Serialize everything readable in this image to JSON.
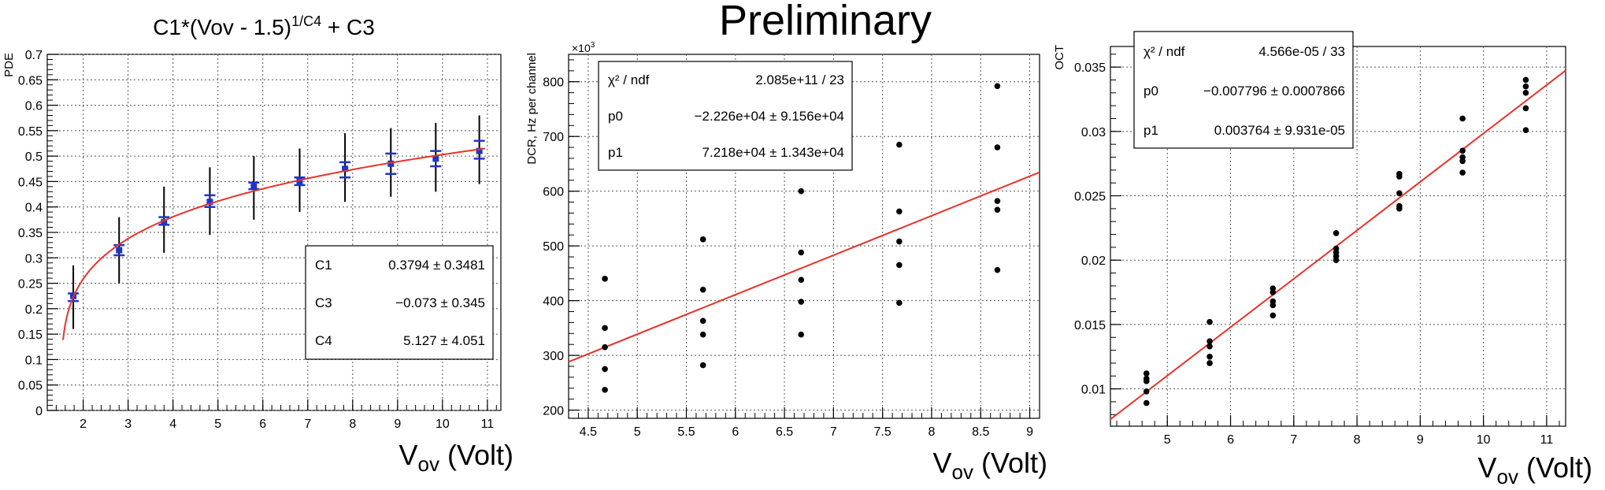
{
  "header": {
    "title": "Preliminary"
  },
  "chart_data": [
    {
      "type": "scatter",
      "title": "C1*(Vov - 1.5)^{1/C4} + C3",
      "title_parts": {
        "main": "C1*(Vov - 1.5)",
        "sup": "1/C4",
        "tail": " + C3"
      },
      "ylabel": "PDE",
      "xlabel": "V_ov (Volt)",
      "xlabel_parts": {
        "main": "V",
        "sub": "ov",
        "tail": " (Volt)"
      },
      "xlim": [
        1.2,
        11.3
      ],
      "ylim": [
        0,
        0.7
      ],
      "xticks": [
        2,
        3,
        4,
        5,
        6,
        7,
        8,
        9,
        10,
        11
      ],
      "yticks": [
        0,
        0.05,
        0.1,
        0.15,
        0.2,
        0.25,
        0.3,
        0.35,
        0.4,
        0.45,
        0.5,
        0.55,
        0.6,
        0.65,
        0.7
      ],
      "ytick_labels": [
        "0",
        "0.05",
        "0.1",
        "0.15",
        "0.2",
        "0.25",
        "0.3",
        "0.35",
        "0.4",
        "0.45",
        "0.5",
        "0.55",
        "0.6",
        "0.65",
        "0.7"
      ],
      "grid": true,
      "points": [
        {
          "x": 1.78,
          "y": 0.225,
          "ylow": 0.16,
          "yhigh": 0.285,
          "marks": [
            0.23,
            0.215
          ]
        },
        {
          "x": 2.8,
          "y": 0.315,
          "ylow": 0.25,
          "yhigh": 0.38,
          "marks": [
            0.325,
            0.305
          ]
        },
        {
          "x": 3.8,
          "y": 0.37,
          "ylow": 0.31,
          "yhigh": 0.44,
          "marks": [
            0.38,
            0.365
          ]
        },
        {
          "x": 4.82,
          "y": 0.41,
          "ylow": 0.345,
          "yhigh": 0.478,
          "marks": [
            0.423,
            0.4
          ]
        },
        {
          "x": 5.8,
          "y": 0.44,
          "ylow": 0.375,
          "yhigh": 0.5,
          "marks": [
            0.448,
            0.435
          ]
        },
        {
          "x": 6.82,
          "y": 0.45,
          "ylow": 0.39,
          "yhigh": 0.515,
          "marks": [
            0.458,
            0.443
          ]
        },
        {
          "x": 7.83,
          "y": 0.475,
          "ylow": 0.41,
          "yhigh": 0.545,
          "marks": [
            0.488,
            0.458
          ]
        },
        {
          "x": 8.85,
          "y": 0.485,
          "ylow": 0.42,
          "yhigh": 0.555,
          "marks": [
            0.505,
            0.465
          ]
        },
        {
          "x": 9.85,
          "y": 0.495,
          "ylow": 0.43,
          "yhigh": 0.565,
          "marks": [
            0.51,
            0.48
          ]
        },
        {
          "x": 10.82,
          "y": 0.51,
          "ylow": 0.445,
          "yhigh": 0.58,
          "marks": [
            0.53,
            0.495
          ]
        }
      ],
      "fit": {
        "function": "C1*(x-1.5)^(1/C4)+C3",
        "C1": 0.3794,
        "C3": -0.073,
        "C4": 5.127,
        "xrange": [
          1.55,
          10.95
        ]
      },
      "stats": [
        {
          "name": "C1",
          "value": "0.3794 ± 0.3481"
        },
        {
          "name": "C3",
          "value": "−0.073 ± 0.345"
        },
        {
          "name": "C4",
          "value": "5.127 ± 4.051"
        }
      ],
      "colors": {
        "fit": "#e8332a",
        "points": "#1f35c8"
      }
    },
    {
      "type": "scatter",
      "title": "",
      "ylabel": "DCR, Hz per channel",
      "exponent_label": "×10³",
      "exponent_parts": {
        "main": "×10",
        "sup": "3"
      },
      "xlabel": "V_ov (Volt)",
      "xlabel_parts": {
        "main": "V",
        "sub": "ov",
        "tail": " (Volt)"
      },
      "xlim": [
        4.3,
        9.1
      ],
      "ylim": [
        185,
        850
      ],
      "xticks": [
        4.5,
        5,
        5.5,
        6,
        6.5,
        7,
        7.5,
        8,
        8.5,
        9
      ],
      "xtick_labels": [
        "4.5",
        "5",
        "5.5",
        "6",
        "6.5",
        "7",
        "7.5",
        "8",
        "8.5",
        "9"
      ],
      "yticks": [
        200,
        300,
        400,
        500,
        600,
        700,
        800
      ],
      "ytick_labels": [
        "200",
        "300",
        "400",
        "500",
        "600",
        "700",
        "800"
      ],
      "grid": true,
      "points": [
        {
          "x": 4.67,
          "y": 440
        },
        {
          "x": 4.67,
          "y": 350
        },
        {
          "x": 4.67,
          "y": 315
        },
        {
          "x": 4.67,
          "y": 275
        },
        {
          "x": 4.67,
          "y": 237
        },
        {
          "x": 5.67,
          "y": 512
        },
        {
          "x": 5.67,
          "y": 420
        },
        {
          "x": 5.67,
          "y": 363
        },
        {
          "x": 5.67,
          "y": 338
        },
        {
          "x": 5.67,
          "y": 282
        },
        {
          "x": 6.67,
          "y": 600
        },
        {
          "x": 6.67,
          "y": 488
        },
        {
          "x": 6.67,
          "y": 438
        },
        {
          "x": 6.67,
          "y": 398
        },
        {
          "x": 6.67,
          "y": 338
        },
        {
          "x": 7.67,
          "y": 685
        },
        {
          "x": 7.67,
          "y": 563
        },
        {
          "x": 7.67,
          "y": 508
        },
        {
          "x": 7.67,
          "y": 465
        },
        {
          "x": 7.67,
          "y": 396
        },
        {
          "x": 8.67,
          "y": 792
        },
        {
          "x": 8.67,
          "y": 680
        },
        {
          "x": 8.67,
          "y": 582
        },
        {
          "x": 8.67,
          "y": 566
        },
        {
          "x": 8.67,
          "y": 456
        }
      ],
      "fit": {
        "function": "p0+p1*x",
        "p0": -22.26,
        "p1": 72.18,
        "xrange": [
          4.3,
          9.1
        ]
      },
      "stats": [
        {
          "name": "χ² / ndf",
          "value": "2.085e+11 / 23"
        },
        {
          "name": "p0",
          "value": "−2.226e+04 ± 9.156e+04"
        },
        {
          "name": "p1",
          "value": "7.218e+04 ± 1.343e+04"
        }
      ],
      "colors": {
        "fit": "#e8332a",
        "points": "#000000"
      }
    },
    {
      "type": "scatter",
      "title": "",
      "ylabel": "OCT",
      "xlabel": "V_ov (Volt)",
      "xlabel_parts": {
        "main": "V",
        "sub": "ov",
        "tail": " (Volt)"
      },
      "xlim": [
        4.1,
        11.3
      ],
      "ylim": [
        0.0071,
        0.0366
      ],
      "xticks": [
        5,
        6,
        7,
        8,
        9,
        10,
        11
      ],
      "xtick_labels": [
        "5",
        "6",
        "7",
        "8",
        "9",
        "10",
        "11"
      ],
      "yticks": [
        0.01,
        0.015,
        0.02,
        0.025,
        0.03,
        0.035
      ],
      "ytick_labels": [
        "0.01",
        "0.015",
        "0.02",
        "0.025",
        "0.03",
        "0.035"
      ],
      "grid": true,
      "points": [
        {
          "x": 4.67,
          "y": 0.0112
        },
        {
          "x": 4.67,
          "y": 0.0108
        },
        {
          "x": 4.67,
          "y": 0.0106
        },
        {
          "x": 4.67,
          "y": 0.0098
        },
        {
          "x": 4.67,
          "y": 0.0089
        },
        {
          "x": 5.67,
          "y": 0.0152
        },
        {
          "x": 5.67,
          "y": 0.0137
        },
        {
          "x": 5.67,
          "y": 0.0133
        },
        {
          "x": 5.67,
          "y": 0.0125
        },
        {
          "x": 5.67,
          "y": 0.012
        },
        {
          "x": 6.67,
          "y": 0.0178
        },
        {
          "x": 6.67,
          "y": 0.0175
        },
        {
          "x": 6.67,
          "y": 0.0168
        },
        {
          "x": 6.67,
          "y": 0.0165
        },
        {
          "x": 6.67,
          "y": 0.0157
        },
        {
          "x": 7.67,
          "y": 0.0221
        },
        {
          "x": 7.67,
          "y": 0.0209
        },
        {
          "x": 7.67,
          "y": 0.0206
        },
        {
          "x": 7.67,
          "y": 0.0203
        },
        {
          "x": 7.67,
          "y": 0.02
        },
        {
          "x": 8.67,
          "y": 0.0267
        },
        {
          "x": 8.67,
          "y": 0.0265
        },
        {
          "x": 8.67,
          "y": 0.0252
        },
        {
          "x": 8.67,
          "y": 0.0242
        },
        {
          "x": 8.67,
          "y": 0.024
        },
        {
          "x": 9.67,
          "y": 0.031
        },
        {
          "x": 9.67,
          "y": 0.0285
        },
        {
          "x": 9.67,
          "y": 0.028
        },
        {
          "x": 9.67,
          "y": 0.0277
        },
        {
          "x": 9.67,
          "y": 0.0268
        },
        {
          "x": 10.67,
          "y": 0.034
        },
        {
          "x": 10.67,
          "y": 0.0335
        },
        {
          "x": 10.67,
          "y": 0.033
        },
        {
          "x": 10.67,
          "y": 0.0318
        },
        {
          "x": 10.67,
          "y": 0.0301
        }
      ],
      "fit": {
        "function": "p0+p1*x",
        "p0": -0.007796,
        "p1": 0.003764,
        "xrange": [
          4.1,
          11.3
        ]
      },
      "stats": [
        {
          "name": "χ² / ndf",
          "value": "4.566e-05 / 33"
        },
        {
          "name": "p0",
          "value": "−0.007796 ± 0.0007866"
        },
        {
          "name": "p1",
          "value": "0.003764 ± 9.931e-05"
        }
      ],
      "colors": {
        "fit": "#e8332a",
        "points": "#000000"
      }
    }
  ]
}
